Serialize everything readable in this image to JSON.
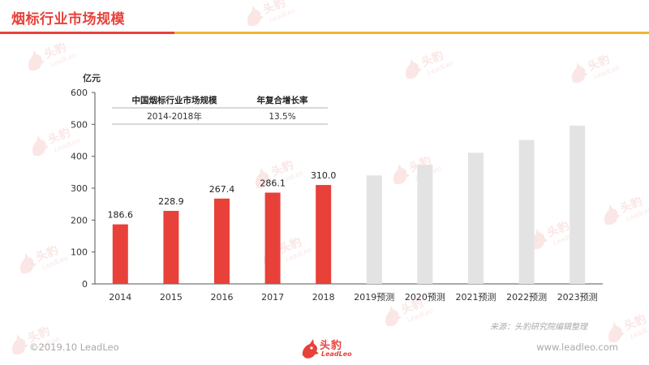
{
  "page": {
    "title": "烟标行业市场规模",
    "footer_left": "©2019.10 LeadLeo",
    "footer_right": "www.leadleo.com",
    "source": "来源：头豹研究院编辑整理",
    "logo_cn": "头豹",
    "logo_en": "LeadLeo",
    "watermark_cn": "头豹",
    "watermark_en": "LeadLeo"
  },
  "colors": {
    "accent": "#e8413a",
    "forecast": "#e3e3e3",
    "rule_orange": "#f2b233",
    "watermark": "#f6d3d0"
  },
  "chart_data": {
    "type": "bar",
    "title": "",
    "xlabel": "",
    "ylabel": "亿元",
    "ylim": [
      0,
      600
    ],
    "yticks": [
      0,
      100,
      200,
      300,
      400,
      500,
      600
    ],
    "grid": false,
    "categories": [
      "2014",
      "2015",
      "2016",
      "2017",
      "2018",
      "2019预测",
      "2020预测",
      "2021预测",
      "2022预测",
      "2023预测"
    ],
    "values": [
      186.6,
      228.9,
      267.4,
      286.1,
      310.0,
      340,
      373,
      411,
      451,
      496
    ],
    "data_labels": [
      "186.6",
      "228.9",
      "267.4",
      "286.1",
      "310.0",
      "",
      "",
      "",
      "",
      ""
    ],
    "actual_count": 5,
    "inset_table": {
      "headers": [
        "中国烟标行业市场规模",
        "年复合增长率"
      ],
      "rows": [
        [
          "2014-2018年",
          "13.5%"
        ]
      ]
    }
  }
}
